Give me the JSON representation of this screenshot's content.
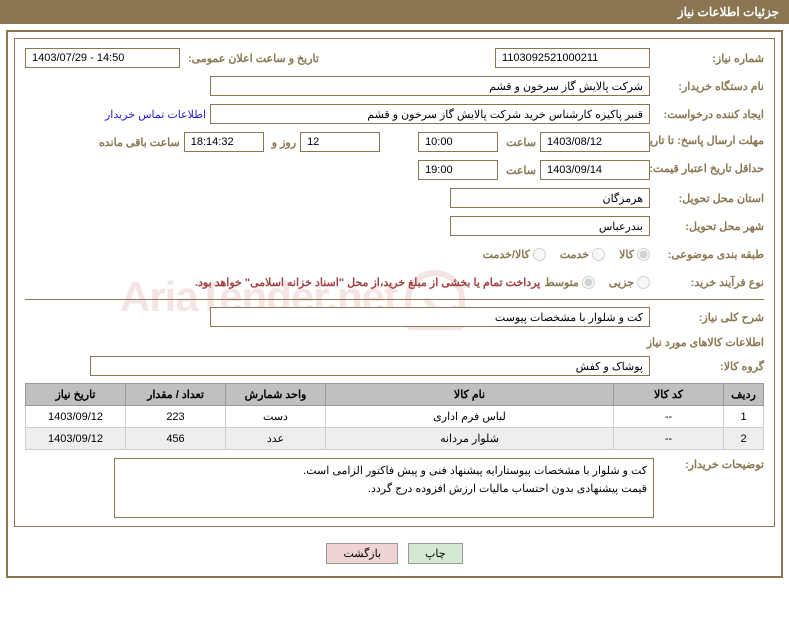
{
  "header": {
    "title": "جزئیات اطلاعات نیاز"
  },
  "labels": {
    "need_no": "شماره نیاز:",
    "announce_dt": "تاریخ و ساعت اعلان عمومی:",
    "buyer_org": "نام دستگاه خریدار:",
    "requester": "ایجاد کننده درخواست:",
    "deadline": "مهلت ارسال پاسخ:",
    "until": "تا تاریخ:",
    "time": "ساعت",
    "days_and": "روز و",
    "remaining": "ساعت باقی مانده",
    "min_validity": "حداقل تاریخ اعتبار قیمت:",
    "province": "استان محل تحویل:",
    "city": "شهر محل تحویل:",
    "category": "طبقه بندی موضوعی:",
    "process": "نوع فرآیند خرید:",
    "summary": "شرح کلی نیاز:",
    "goods_info": "اطلاعات کالاهای مورد نیاز",
    "goods_group": "گروه کالا:",
    "buyer_notes": "توضیحات خریدار:",
    "contact": "اطلاعات تماس خریدار"
  },
  "fields": {
    "need_no": "1103092521000211",
    "announce_dt": "1403/07/29 - 14:50",
    "buyer_org": "شرکت پالایش گاز سرخون و قشم",
    "requester": "قنبر پاکیزه کارشناس خرید شرکت پالایش گاز سرخون و قشم",
    "deadline_date": "1403/08/12",
    "deadline_time": "10:00",
    "remain_days": "12",
    "remain_time": "18:14:32",
    "validity_date": "1403/09/14",
    "validity_time": "19:00",
    "province": "هرمزگان",
    "city": "بندرعباس",
    "summary": "کت و شلوار با مشخصات پیوست",
    "goods_group": "پوشاک و کفش"
  },
  "radios": {
    "category": [
      {
        "label": "کالا",
        "checked": true
      },
      {
        "label": "خدمت",
        "checked": false
      },
      {
        "label": "کالا/خدمت",
        "checked": false
      }
    ],
    "process": [
      {
        "label": "جزیی",
        "checked": false
      },
      {
        "label": "متوسط",
        "checked": true
      }
    ]
  },
  "process_note": "پرداخت تمام یا بخشی از مبلغ خرید،از محل \"اسناد خزانه اسلامی\" خواهد بود.",
  "table": {
    "headers": [
      "ردیف",
      "کد کالا",
      "نام کالا",
      "واحد شمارش",
      "تعداد / مقدار",
      "تاریخ نیاز"
    ],
    "col_widths": [
      "40px",
      "110px",
      "auto",
      "100px",
      "100px",
      "100px"
    ],
    "rows": [
      {
        "n": "1",
        "code": "--",
        "name": "لباس فرم اداری",
        "unit": "دست",
        "qty": "223",
        "date": "1403/09/12"
      },
      {
        "n": "2",
        "code": "--",
        "name": "شلوار مردانه",
        "unit": "عدد",
        "qty": "456",
        "date": "1403/09/12"
      }
    ]
  },
  "description": "کت و شلوار با مشخصات پیوستارایه پیشنهاد فنی و پیش فاکتور الزامی است.\nقیمت پیشنهادی بدون احتساب مالیات ارزش افزوده درج گردد.",
  "buttons": {
    "print": "چاپ",
    "back": "بازگشت"
  },
  "watermark": "AriaTender.net"
}
